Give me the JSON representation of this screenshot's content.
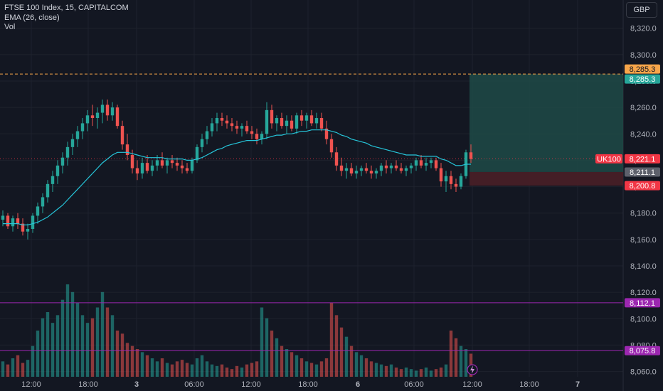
{
  "legend": {
    "title": "FTSE 100 Index, 15, CAPITALCOM",
    "ema": "EMA (26, close)",
    "vol": "Vol"
  },
  "currency": "GBP",
  "colors": {
    "background": "#131722",
    "up": "#26a69a",
    "down": "#ef5350",
    "ema": "#26c6da",
    "target_zone": "#1f4a47",
    "stop_zone": "#4a1f27",
    "level_line": "#9c27b0",
    "dashed_orange": "#f7a54a",
    "ticker_red": "#f23645",
    "grey_label": "#5d606b"
  },
  "chart_data": {
    "type": "candlestick",
    "yaxis": {
      "ticks": [
        8060,
        8080,
        8100,
        8120,
        8140,
        8160,
        8180,
        8200,
        8220,
        8240,
        8260,
        8280,
        8300,
        8320
      ],
      "tick_labels": [
        "8,060.0",
        "8,080.0",
        "8,100.0",
        "8,120.0",
        "8,140.0",
        "8,160.0",
        "8,180.0",
        "8,200.0",
        "8,220.0",
        "8,240.0",
        "8,260.0",
        "8,280.0",
        "8,300.0",
        "8,320.0"
      ],
      "range": [
        8056,
        8336
      ]
    },
    "xaxis": {
      "tick_labels": [
        "12:00",
        "18:00",
        "3",
        "06:00",
        "12:00",
        "18:00",
        "6",
        "06:00",
        "12:00",
        "18:00",
        "7"
      ],
      "bold_labels": [
        "3",
        "6",
        "7"
      ]
    },
    "price_labels": [
      {
        "name": "target-upper",
        "value": 8285.3,
        "text": "8,285.3",
        "color": "#f7a54a"
      },
      {
        "name": "target",
        "value": 8285.3,
        "text": "8,285.3",
        "color": "#26a69a"
      },
      {
        "name": "current",
        "value": 8221.1,
        "text": "8,221.1",
        "symbol": "UK100",
        "color": "#f23645"
      },
      {
        "name": "entry",
        "value": 8211.1,
        "text": "8,211.1",
        "color": "#5d606b"
      },
      {
        "name": "stop",
        "value": 8200.8,
        "text": "8,200.8",
        "color": "#f23645"
      },
      {
        "name": "level-upper",
        "value": 8112.1,
        "text": "8,112.1",
        "color": "#9c27b0"
      },
      {
        "name": "level-lower",
        "value": 8075.8,
        "text": "8,075.8",
        "color": "#9c27b0"
      }
    ],
    "horizontal_lines": [
      {
        "name": "dashed-target-line",
        "value": 8285.3,
        "style": "dashed",
        "color": "#f7a54a"
      },
      {
        "name": "current-price-line",
        "value": 8221.1,
        "style": "dotted",
        "color": "#f23645"
      },
      {
        "name": "level-line-upper",
        "value": 8112.1,
        "style": "solid",
        "color": "#9c27b0"
      },
      {
        "name": "level-line-lower",
        "value": 8075.8,
        "style": "solid",
        "color": "#9c27b0"
      }
    ],
    "position": {
      "entry": 8211.1,
      "target": 8285.3,
      "stop": 8200.8
    },
    "candles": [
      [
        8175,
        8182,
        8170,
        8178
      ],
      [
        8178,
        8180,
        8168,
        8170
      ],
      [
        8170,
        8178,
        8166,
        8176
      ],
      [
        8176,
        8180,
        8168,
        8172
      ],
      [
        8172,
        8176,
        8163,
        8166
      ],
      [
        8166,
        8172,
        8160,
        8168
      ],
      [
        8168,
        8180,
        8165,
        8178
      ],
      [
        8178,
        8188,
        8172,
        8185
      ],
      [
        8185,
        8195,
        8180,
        8192
      ],
      [
        8192,
        8205,
        8188,
        8202
      ],
      [
        8202,
        8212,
        8196,
        8208
      ],
      [
        8208,
        8220,
        8202,
        8216
      ],
      [
        8216,
        8226,
        8210,
        8222
      ],
      [
        8222,
        8234,
        8216,
        8230
      ],
      [
        8230,
        8240,
        8224,
        8236
      ],
      [
        8236,
        8246,
        8230,
        8242
      ],
      [
        8242,
        8252,
        8236,
        8248
      ],
      [
        8248,
        8258,
        8242,
        8254
      ],
      [
        8254,
        8262,
        8246,
        8252
      ],
      [
        8252,
        8260,
        8244,
        8256
      ],
      [
        8256,
        8266,
        8248,
        8262
      ],
      [
        8262,
        8266,
        8250,
        8254
      ],
      [
        8254,
        8264,
        8250,
        8260
      ],
      [
        8260,
        8262,
        8244,
        8246
      ],
      [
        8246,
        8250,
        8228,
        8232
      ],
      [
        8232,
        8240,
        8220,
        8224
      ],
      [
        8224,
        8228,
        8210,
        8214
      ],
      [
        8214,
        8220,
        8205,
        8210
      ],
      [
        8210,
        8222,
        8206,
        8218
      ],
      [
        8218,
        8224,
        8210,
        8212
      ],
      [
        8212,
        8220,
        8208,
        8216
      ],
      [
        8216,
        8224,
        8212,
        8220
      ],
      [
        8220,
        8226,
        8214,
        8216
      ],
      [
        8216,
        8222,
        8210,
        8220
      ],
      [
        8220,
        8224,
        8214,
        8218
      ],
      [
        8218,
        8222,
        8212,
        8216
      ],
      [
        8216,
        8220,
        8210,
        8214
      ],
      [
        8214,
        8218,
        8210,
        8212
      ],
      [
        8212,
        8222,
        8210,
        8220
      ],
      [
        8220,
        8232,
        8218,
        8230
      ],
      [
        8230,
        8240,
        8226,
        8236
      ],
      [
        8236,
        8246,
        8232,
        8242
      ],
      [
        8242,
        8252,
        8238,
        8248
      ],
      [
        8248,
        8256,
        8242,
        8252
      ],
      [
        8252,
        8256,
        8246,
        8250
      ],
      [
        8250,
        8254,
        8244,
        8248
      ],
      [
        8248,
        8252,
        8242,
        8246
      ],
      [
        8246,
        8250,
        8240,
        8244
      ],
      [
        8244,
        8248,
        8238,
        8246
      ],
      [
        8246,
        8250,
        8240,
        8242
      ],
      [
        8242,
        8246,
        8236,
        8240
      ],
      [
        8240,
        8244,
        8232,
        8236
      ],
      [
        8236,
        8242,
        8232,
        8240
      ],
      [
        8240,
        8264,
        8236,
        8258
      ],
      [
        8258,
        8262,
        8244,
        8248
      ],
      [
        8248,
        8254,
        8242,
        8252
      ],
      [
        8252,
        8256,
        8244,
        8246
      ],
      [
        8246,
        8254,
        8240,
        8250
      ],
      [
        8250,
        8254,
        8242,
        8244
      ],
      [
        8244,
        8256,
        8240,
        8254
      ],
      [
        8254,
        8258,
        8246,
        8250
      ],
      [
        8250,
        8256,
        8244,
        8254
      ],
      [
        8254,
        8258,
        8246,
        8248
      ],
      [
        8248,
        8256,
        8244,
        8252
      ],
      [
        8252,
        8256,
        8242,
        8244
      ],
      [
        8244,
        8250,
        8232,
        8236
      ],
      [
        8236,
        8240,
        8222,
        8226
      ],
      [
        8226,
        8230,
        8212,
        8216
      ],
      [
        8216,
        8222,
        8208,
        8212
      ],
      [
        8212,
        8218,
        8206,
        8214
      ],
      [
        8214,
        8218,
        8208,
        8210
      ],
      [
        8210,
        8216,
        8206,
        8212
      ],
      [
        8212,
        8216,
        8208,
        8214
      ],
      [
        8214,
        8218,
        8210,
        8212
      ],
      [
        8212,
        8216,
        8206,
        8210
      ],
      [
        8210,
        8214,
        8206,
        8212
      ],
      [
        8212,
        8218,
        8208,
        8216
      ],
      [
        8216,
        8220,
        8210,
        8214
      ],
      [
        8214,
        8218,
        8210,
        8216
      ],
      [
        8216,
        8220,
        8212,
        8214
      ],
      [
        8214,
        8218,
        8210,
        8212
      ],
      [
        8212,
        8216,
        8208,
        8214
      ],
      [
        8214,
        8218,
        8210,
        8216
      ],
      [
        8216,
        8222,
        8212,
        8220
      ],
      [
        8220,
        8224,
        8214,
        8216
      ],
      [
        8216,
        8222,
        8212,
        8218
      ],
      [
        8218,
        8222,
        8214,
        8220
      ],
      [
        8220,
        8222,
        8212,
        8214
      ],
      [
        8214,
        8218,
        8200,
        8204
      ],
      [
        8204,
        8212,
        8196,
        8208
      ],
      [
        8208,
        8212,
        8198,
        8202
      ],
      [
        8202,
        8206,
        8196,
        8200
      ],
      [
        8200,
        8210,
        8198,
        8208
      ],
      [
        8208,
        8228,
        8206,
        8226
      ],
      [
        8226,
        8232,
        8218,
        8221
      ]
    ],
    "ema": [
      8172,
      8172,
      8172,
      8172,
      8171,
      8171,
      8172,
      8173,
      8175,
      8177,
      8180,
      8183,
      8186,
      8190,
      8194,
      8198,
      8202,
      8206,
      8210,
      8214,
      8218,
      8221,
      8224,
      8226,
      8226,
      8226,
      8225,
      8224,
      8223,
      8222,
      8222,
      8222,
      8222,
      8221,
      8221,
      8221,
      8221,
      8220,
      8220,
      8221,
      8222,
      8224,
      8226,
      8228,
      8229,
      8231,
      8232,
      8233,
      8234,
      8235,
      8235,
      8235,
      8236,
      8237,
      8238,
      8239,
      8239,
      8240,
      8240,
      8241,
      8242,
      8242,
      8243,
      8243,
      8243,
      8243,
      8242,
      8241,
      8239,
      8238,
      8236,
      8235,
      8234,
      8233,
      8231,
      8230,
      8229,
      8228,
      8227,
      8226,
      8225,
      8224,
      8224,
      8224,
      8223,
      8223,
      8223,
      8223,
      8221,
      8220,
      8218,
      8216,
      8216,
      8217,
      8217
    ],
    "volumes": [
      10,
      8,
      12,
      14,
      9,
      11,
      20,
      30,
      38,
      42,
      35,
      40,
      50,
      60,
      55,
      48,
      40,
      35,
      38,
      45,
      55,
      45,
      40,
      30,
      28,
      22,
      20,
      18,
      16,
      14,
      12,
      10,
      12,
      9,
      8,
      10,
      11,
      9,
      8,
      12,
      14,
      10,
      8,
      7,
      8,
      6,
      5,
      7,
      6,
      8,
      9,
      10,
      45,
      38,
      30,
      25,
      20,
      18,
      16,
      14,
      12,
      10,
      9,
      8,
      10,
      12,
      48,
      40,
      32,
      26,
      20,
      16,
      14,
      12,
      10,
      9,
      8,
      7,
      8,
      6,
      5,
      6,
      5,
      4,
      5,
      6,
      4,
      5,
      6,
      8,
      30,
      25,
      20,
      18,
      15
    ]
  }
}
